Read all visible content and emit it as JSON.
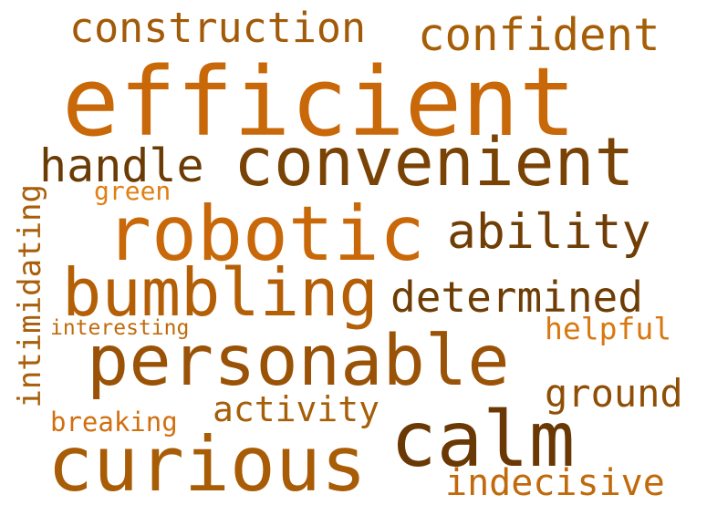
{
  "words": [
    {
      "text": "construction",
      "color": "#a25a08"
    },
    {
      "text": "confident",
      "color": "#a65e06"
    },
    {
      "text": "efficient",
      "color": "#c96808"
    },
    {
      "text": "handle",
      "color": "#6a3b04"
    },
    {
      "text": "convenient",
      "color": "#7a4306"
    },
    {
      "text": "green",
      "color": "#e07f12"
    },
    {
      "text": "robotic",
      "color": "#c96808"
    },
    {
      "text": "ability",
      "color": "#6f3d05"
    },
    {
      "text": "intimidating",
      "color": "#a85e0a"
    },
    {
      "text": "bumbling",
      "color": "#b45f06"
    },
    {
      "text": "determined",
      "color": "#6e3d05"
    },
    {
      "text": "interesting",
      "color": "#c06a0c"
    },
    {
      "text": "helpful",
      "color": "#d97710"
    },
    {
      "text": "personable",
      "color": "#9a5207"
    },
    {
      "text": "activity",
      "color": "#a65e08"
    },
    {
      "text": "ground",
      "color": "#8f4e06"
    },
    {
      "text": "breaking",
      "color": "#d07010"
    },
    {
      "text": "calm",
      "color": "#6a3804"
    },
    {
      "text": "curious",
      "color": "#a85c06"
    },
    {
      "text": "indecisive",
      "color": "#c06a0c"
    }
  ]
}
